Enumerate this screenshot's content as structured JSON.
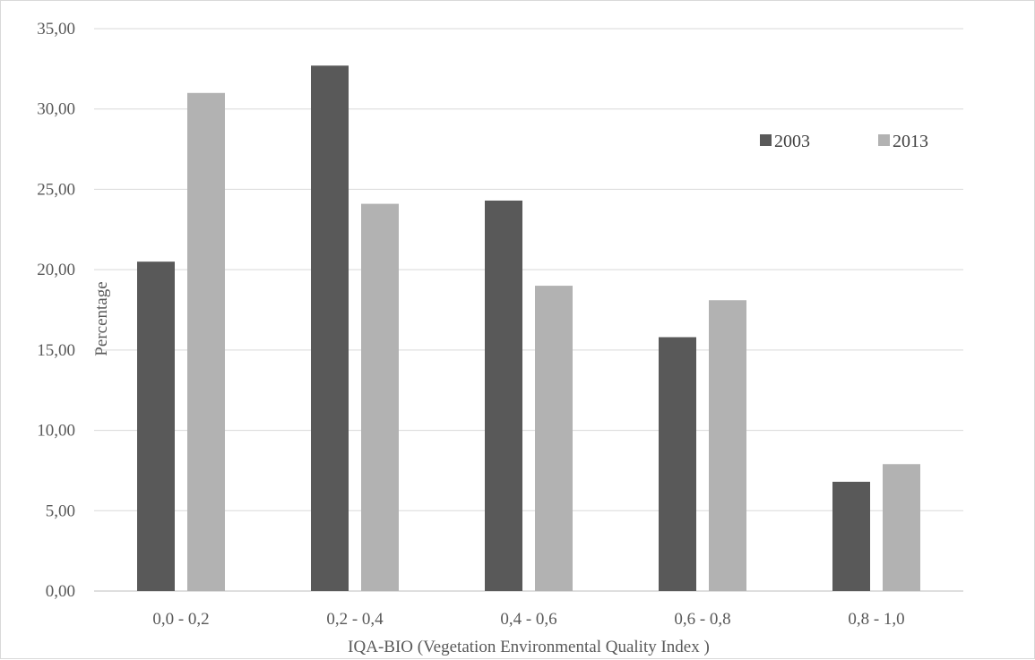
{
  "chart_data": {
    "type": "bar",
    "title": "",
    "xlabel": "IQA-BIO (Vegetation Environmental Quality Index )",
    "ylabel": "Percentage",
    "categories": [
      "0,0 - 0,2",
      "0,2 - 0,4",
      "0,4 - 0,6",
      "0,6 - 0,8",
      "0,8 - 1,0"
    ],
    "series": [
      {
        "name": "2003",
        "color": "#595959",
        "values": [
          20.5,
          32.7,
          24.3,
          15.8,
          6.8
        ]
      },
      {
        "name": "2013",
        "color": "#b2b2b2",
        "values": [
          31.0,
          24.1,
          19.0,
          18.1,
          7.9
        ]
      }
    ],
    "ylim": [
      0,
      35
    ],
    "yticks": [
      "0,00",
      "5,00",
      "10,00",
      "15,00",
      "20,00",
      "25,00",
      "30,00",
      "35,00"
    ],
    "grid": true,
    "legend_position": "top-right"
  }
}
